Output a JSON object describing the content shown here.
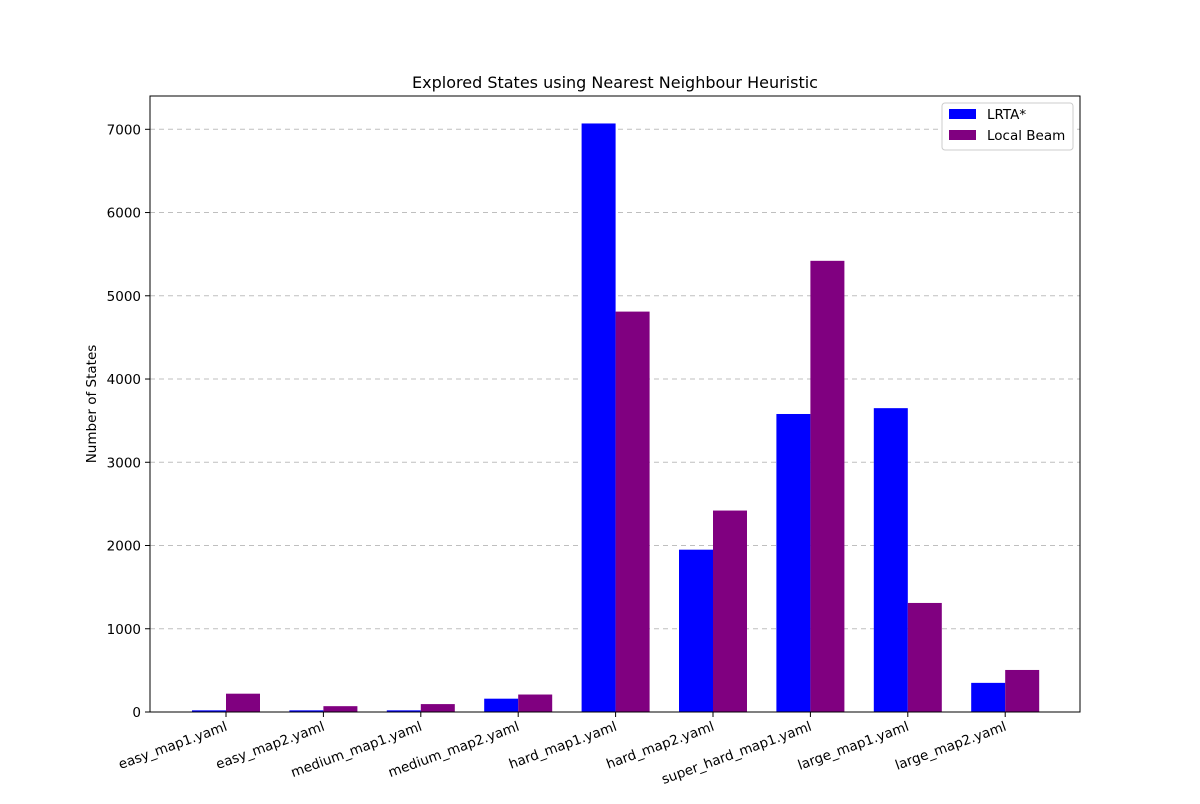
{
  "chart_data": {
    "type": "bar",
    "title": "Explored States using Nearest Neighbour Heuristic",
    "xlabel": "",
    "ylabel": "Number of States",
    "ylim": [
      0,
      7400
    ],
    "yticks": [
      0,
      1000,
      2000,
      3000,
      4000,
      5000,
      6000,
      7000
    ],
    "grid": "y-dashed",
    "legend_position": "top-right",
    "categories": [
      "easy_map1.yaml",
      "easy_map2.yaml",
      "medium_map1.yaml",
      "medium_map2.yaml",
      "hard_map1.yaml",
      "hard_map2.yaml",
      "super_hard_map1.yaml",
      "large_map1.yaml",
      "large_map2.yaml"
    ],
    "series": [
      {
        "name": "LRTA*",
        "color": "#0000ff",
        "values": [
          20,
          20,
          20,
          160,
          7070,
          1950,
          3580,
          3650,
          350
        ]
      },
      {
        "name": "Local Beam",
        "color": "#800080",
        "values": [
          220,
          70,
          95,
          210,
          4810,
          2420,
          5420,
          1310,
          505
        ]
      }
    ]
  }
}
